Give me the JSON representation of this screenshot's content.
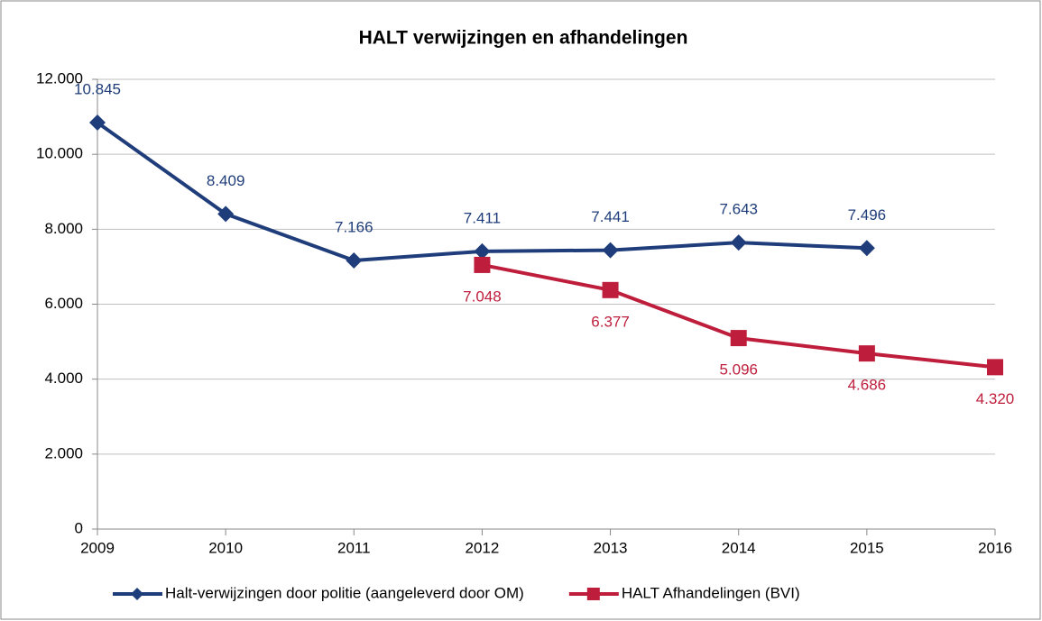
{
  "chart_data": {
    "type": "line",
    "title": "HALT verwijzingen en afhandelingen",
    "x": [
      2009,
      2010,
      2011,
      2012,
      2013,
      2014,
      2015,
      2016
    ],
    "xlim": [
      2009,
      2016
    ],
    "xticks": [
      2009,
      2010,
      2011,
      2012,
      2013,
      2014,
      2015,
      2016
    ],
    "ylim": [
      0,
      12000
    ],
    "yticks": [
      0,
      {
        "value": 2000,
        "label": "2.000"
      },
      {
        "value": 4000,
        "label": "4.000"
      },
      {
        "value": 6000,
        "label": "6.000"
      },
      {
        "value": 8000,
        "label": "8.000"
      },
      {
        "value": 10000,
        "label": "10.000"
      },
      {
        "value": 12000,
        "label": "12.000"
      }
    ],
    "grid": true,
    "legend": "bottom",
    "series": [
      {
        "name": "Halt-verwijzingen door politie (aangeleverd door OM)",
        "color": "#1f3d7a",
        "marker": "diamond",
        "label_position": "above",
        "values": [
          10845,
          8409,
          7166,
          7411,
          7441,
          7643,
          7496,
          null
        ],
        "value_labels": [
          "10.845",
          "8.409",
          "7.166",
          "7.411",
          "7.441",
          "7.643",
          "7.496",
          null
        ]
      },
      {
        "name": "HALT Afhandelingen (BVI)",
        "color": "#be1e3c",
        "marker": "square",
        "label_position": "below",
        "values": [
          null,
          null,
          null,
          7048,
          6377,
          5096,
          4686,
          4320
        ],
        "value_labels": [
          null,
          null,
          null,
          "7.048",
          "6.377",
          "5.096",
          "4.686",
          "4.320"
        ]
      }
    ]
  }
}
